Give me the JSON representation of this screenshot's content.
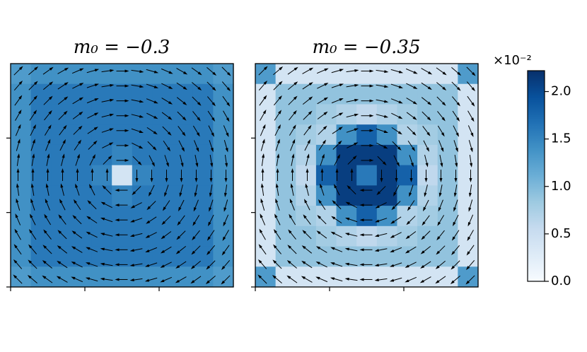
{
  "chart_data": [
    {
      "type": "heatmap",
      "title": "m₀ = −0.3",
      "cmap": "Blues",
      "clim": [
        0,
        2.22
      ],
      "xlim": [
        0,
        30
      ],
      "ylim": [
        0,
        30
      ],
      "xticks": [
        0,
        10,
        20
      ],
      "yticks": [
        0,
        10,
        20
      ],
      "values": [
        [
          1.3,
          1.4,
          1.4,
          1.4,
          1.4,
          1.4,
          1.4,
          1.4,
          1.4,
          1.4,
          1.3
        ],
        [
          1.4,
          1.6,
          1.6,
          1.6,
          1.6,
          1.6,
          1.6,
          1.6,
          1.6,
          1.6,
          1.4
        ],
        [
          1.4,
          1.6,
          1.6,
          1.6,
          1.6,
          1.6,
          1.6,
          1.6,
          1.6,
          1.6,
          1.4
        ],
        [
          1.4,
          1.6,
          1.6,
          1.6,
          1.6,
          1.6,
          1.6,
          1.6,
          1.6,
          1.6,
          1.4
        ],
        [
          1.4,
          1.6,
          1.6,
          1.6,
          1.6,
          1.5,
          1.6,
          1.6,
          1.6,
          1.6,
          1.4
        ],
        [
          1.4,
          1.6,
          1.6,
          1.6,
          1.5,
          0.4,
          1.5,
          1.6,
          1.6,
          1.6,
          1.4
        ],
        [
          1.4,
          1.6,
          1.6,
          1.6,
          1.6,
          1.5,
          1.6,
          1.6,
          1.6,
          1.6,
          1.4
        ],
        [
          1.4,
          1.6,
          1.6,
          1.6,
          1.6,
          1.6,
          1.6,
          1.6,
          1.6,
          1.6,
          1.4
        ],
        [
          1.4,
          1.6,
          1.6,
          1.6,
          1.6,
          1.6,
          1.6,
          1.6,
          1.6,
          1.6,
          1.4
        ],
        [
          1.4,
          1.6,
          1.6,
          1.6,
          1.6,
          1.6,
          1.6,
          1.6,
          1.6,
          1.6,
          1.4
        ],
        [
          1.3,
          1.4,
          1.4,
          1.4,
          1.4,
          1.4,
          1.4,
          1.4,
          1.4,
          1.4,
          1.3
        ]
      ]
    },
    {
      "type": "heatmap",
      "title": "m₀ = −0.35",
      "cmap": "Blues",
      "clim": [
        0,
        2.22
      ],
      "xlim": [
        0,
        30
      ],
      "ylim": [
        0,
        30
      ],
      "xticks": [
        0,
        10,
        20
      ],
      "yticks": [
        0,
        10,
        20
      ],
      "values": [
        [
          1.3,
          0.4,
          0.4,
          0.4,
          0.4,
          0.4,
          0.4,
          0.4,
          0.4,
          0.4,
          1.3
        ],
        [
          0.4,
          0.9,
          0.9,
          0.9,
          0.9,
          0.9,
          0.9,
          0.9,
          0.9,
          0.9,
          0.4
        ],
        [
          0.4,
          0.9,
          0.9,
          0.8,
          0.7,
          0.6,
          0.7,
          0.8,
          0.9,
          0.9,
          0.4
        ],
        [
          0.4,
          0.9,
          0.8,
          0.7,
          1.4,
          1.8,
          1.4,
          0.7,
          0.8,
          0.9,
          0.4
        ],
        [
          0.4,
          0.9,
          0.7,
          1.4,
          2.1,
          2.1,
          2.1,
          1.4,
          0.7,
          0.9,
          0.4
        ],
        [
          0.4,
          0.9,
          0.6,
          1.8,
          2.1,
          1.6,
          2.1,
          1.8,
          0.6,
          0.9,
          0.4
        ],
        [
          0.4,
          0.9,
          0.7,
          1.4,
          2.1,
          2.1,
          2.1,
          1.4,
          0.7,
          0.9,
          0.4
        ],
        [
          0.4,
          0.9,
          0.8,
          0.7,
          1.4,
          1.8,
          1.4,
          0.7,
          0.8,
          0.9,
          0.4
        ],
        [
          0.4,
          0.9,
          0.9,
          0.8,
          0.7,
          0.6,
          0.7,
          0.8,
          0.9,
          0.9,
          0.4
        ],
        [
          0.4,
          0.9,
          0.9,
          0.9,
          0.9,
          0.9,
          0.9,
          0.9,
          0.9,
          0.9,
          0.4
        ],
        [
          1.3,
          0.4,
          0.4,
          0.4,
          0.4,
          0.4,
          0.4,
          0.4,
          0.4,
          0.4,
          1.3
        ]
      ]
    }
  ],
  "colorbar": {
    "label": "×10⁻²",
    "ylim": [
      0,
      2.22
    ],
    "yticks": [
      {
        "value": 0,
        "label": "0.0"
      },
      {
        "value": 0.5,
        "label": "0.5"
      },
      {
        "value": 1,
        "label": "1.0"
      },
      {
        "value": 1.5,
        "label": "1.5"
      },
      {
        "value": 2,
        "label": "2.0"
      }
    ]
  }
}
